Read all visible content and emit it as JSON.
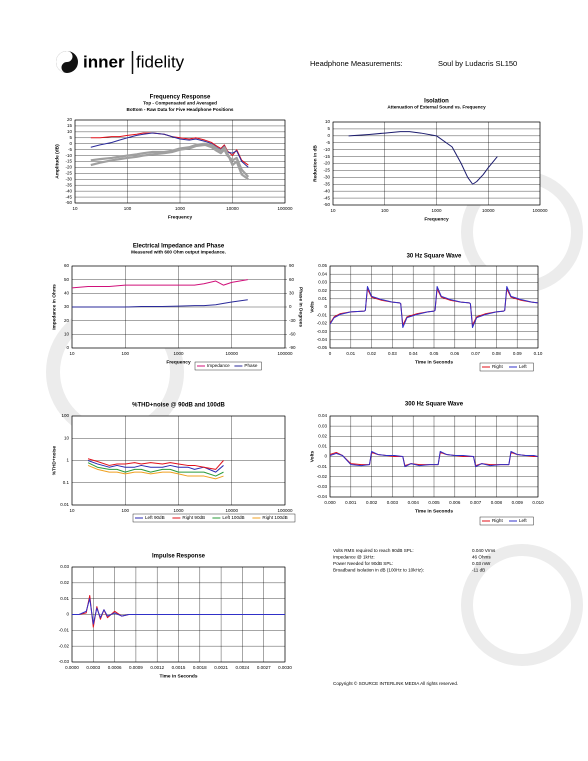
{
  "header": {
    "brand_left": "inner",
    "brand_right": "fidelity",
    "heading": "Headphone Measurements:",
    "product": "Soul by Ludacris SL150"
  },
  "chart_data": [
    {
      "type": "line",
      "title": "Frequency Response",
      "subtitles": [
        "Top - Compensated and Averaged",
        "Bottom - Raw Data for Five Headphone Positions"
      ],
      "x_label": "Frequency",
      "y_label": "Amplitude (dB)",
      "xscale": "log",
      "grid": true,
      "xlim": [
        10,
        100000
      ],
      "xticks": [
        10,
        100,
        1000,
        10000,
        100000
      ],
      "ylim": [
        -50,
        20
      ],
      "yticks": [
        20,
        15,
        10,
        5,
        0,
        -5,
        -10,
        -15,
        -20,
        -25,
        -30,
        -35,
        -40,
        -45,
        -50
      ],
      "x": [
        20,
        30,
        50,
        70,
        100,
        150,
        200,
        300,
        500,
        700,
        1000,
        1500,
        2000,
        3000,
        4000,
        5000,
        6000,
        7000,
        8000,
        10000,
        12000,
        15000,
        20000
      ],
      "series": [
        {
          "color": "#e0101a",
          "width": 1,
          "values": [
            5,
            5,
            6,
            6,
            7,
            8,
            9,
            9,
            8,
            6,
            5,
            4,
            5,
            3,
            1,
            -2,
            -4,
            -1,
            -6,
            -10,
            -5,
            -14,
            -18
          ]
        },
        {
          "color": "#2a2a9a",
          "width": 1,
          "values": [
            -3,
            -1,
            1,
            3,
            5,
            7,
            8,
            9,
            8,
            6,
            4,
            3,
            4,
            2,
            0,
            -3,
            -5,
            -2,
            -7,
            -8,
            -6,
            -15,
            -20
          ]
        },
        {
          "color": "#a0a0a0",
          "width": 2.2,
          "values": [
            -18,
            -16,
            -14,
            -13,
            -12,
            -11,
            -10,
            -9,
            -8,
            -7,
            -5,
            -4,
            -2,
            -1,
            -3,
            -6,
            -8,
            -5,
            -10,
            -14,
            -12,
            -22,
            -28
          ]
        },
        {
          "color": "#a0a0a0",
          "width": 2.2,
          "values": [
            -14,
            -13,
            -12,
            -11,
            -10,
            -9,
            -8,
            -7,
            -7,
            -6,
            -4,
            -3,
            -1,
            0,
            -1,
            -4,
            -6,
            -3,
            -8,
            -18,
            -15,
            -26,
            -30
          ]
        }
      ]
    },
    {
      "type": "line",
      "title": "Isolation",
      "subtitles": [
        "Attenuation of External Sound vs. Frequency"
      ],
      "x_label": "Frequency",
      "y_label": "Reduction in dB",
      "xscale": "log",
      "grid": true,
      "xlim": [
        10,
        100000
      ],
      "xticks": [
        10,
        100,
        1000,
        10000,
        100000
      ],
      "ylim": [
        -50,
        10
      ],
      "yticks": [
        10,
        5,
        0,
        -5,
        -10,
        -15,
        -20,
        -25,
        -30,
        -35,
        -40,
        -45,
        -50
      ],
      "x": [
        20,
        50,
        100,
        200,
        300,
        500,
        1000,
        2000,
        3000,
        4000,
        5000,
        6000,
        8000,
        10000,
        15000
      ],
      "series": [
        {
          "color": "#1c1c6e",
          "width": 1,
          "values": [
            0,
            1,
            2,
            3,
            3,
            2,
            0,
            -8,
            -20,
            -30,
            -35,
            -33,
            -28,
            -23,
            -15
          ]
        }
      ]
    },
    {
      "type": "line",
      "title": "Electrical Impedance and Phase",
      "subtitles": [
        "Measured with 600 Ohm output impedance."
      ],
      "x_label": "Frequency",
      "y_label": "Impedance in Ohms",
      "y2_label": "Phase in Degrees",
      "xscale": "log",
      "grid": true,
      "legend": "bottom",
      "xlim": [
        10,
        100000
      ],
      "xticks": [
        10,
        100,
        1000,
        10000,
        100000
      ],
      "ylim": [
        0,
        60
      ],
      "yticks": [
        60,
        50,
        40,
        30,
        20,
        10,
        0
      ],
      "y2lim": [
        -90,
        90
      ],
      "y2ticks": [
        90,
        60,
        30,
        0,
        -30,
        -60,
        -90
      ],
      "x": [
        10,
        20,
        50,
        100,
        200,
        500,
        1000,
        2000,
        3000,
        5000,
        7000,
        10000,
        20000
      ],
      "series": [
        {
          "name": "Impedance",
          "color": "#d0107a",
          "width": 1,
          "values": [
            44,
            45,
            45,
            46,
            46,
            46,
            46,
            46,
            47,
            49,
            46,
            48,
            50
          ]
        },
        {
          "name": "Phase",
          "color": "#2a2a9a",
          "width": 1,
          "axis": "y2",
          "values": [
            0,
            0,
            0,
            0,
            1,
            1,
            2,
            3,
            3,
            5,
            8,
            11,
            16
          ]
        }
      ]
    },
    {
      "type": "line",
      "title": "30 Hz Square Wave",
      "x_label": "Time in Seconds",
      "y_label": "Volts",
      "grid": true,
      "legend": "bottom-right",
      "xlim": [
        0,
        0.1
      ],
      "xticks": [
        0,
        0.01,
        0.02,
        0.03,
        0.04,
        0.05,
        0.06,
        0.07,
        0.08,
        0.09,
        {
          "value": 0.1,
          "label": "0.10"
        }
      ],
      "ylim": [
        -0.05,
        0.05
      ],
      "yticks": [
        0.05,
        0.04,
        0.03,
        0.02,
        0.01,
        0,
        -0.01,
        -0.02,
        -0.03,
        -0.04,
        -0.05
      ],
      "x": [
        0,
        0.002,
        0.005,
        0.01,
        0.0165,
        0.017,
        0.018,
        0.02,
        0.025,
        0.03,
        0.0335,
        0.034,
        0.035,
        0.037,
        0.042,
        0.047,
        0.05,
        0.0505,
        0.0515,
        0.0535,
        0.058,
        0.063,
        0.067,
        0.0675,
        0.0685,
        0.0705,
        0.075,
        0.08,
        0.0835,
        0.084,
        0.085,
        0.087,
        0.092,
        0.097,
        0.1
      ],
      "series": [
        {
          "name": "Right",
          "color": "#e0101a",
          "width": 1,
          "values": [
            -0.02,
            -0.012,
            -0.008,
            -0.006,
            -0.005,
            -0.004,
            0.022,
            0.012,
            0.008,
            0.006,
            0.005,
            0.004,
            -0.022,
            -0.012,
            -0.008,
            -0.006,
            -0.005,
            -0.004,
            0.022,
            0.012,
            0.008,
            0.006,
            0.005,
            0.004,
            -0.022,
            -0.012,
            -0.008,
            -0.006,
            -0.005,
            -0.004,
            0.022,
            0.012,
            0.008,
            0.006,
            0.005
          ]
        },
        {
          "name": "Left",
          "color": "#3030c8",
          "width": 1,
          "values": [
            -0.021,
            -0.013,
            -0.009,
            -0.006,
            -0.005,
            -0.004,
            0.025,
            0.013,
            0.009,
            0.006,
            0.005,
            0.004,
            -0.025,
            -0.013,
            -0.009,
            -0.006,
            -0.005,
            -0.004,
            0.025,
            0.013,
            0.009,
            0.006,
            0.005,
            0.004,
            -0.025,
            -0.013,
            -0.009,
            -0.006,
            -0.005,
            -0.004,
            0.025,
            0.013,
            0.009,
            0.006,
            0.005
          ]
        }
      ]
    },
    {
      "type": "line",
      "title": "%THD+noise @ 90dB and 100dB",
      "x_label": "Frequency",
      "y_label": "%THD+noise",
      "xscale": "log",
      "yscale": "log",
      "grid": true,
      "legend": "bottom",
      "xlim": [
        10,
        100000
      ],
      "xticks": [
        10,
        100,
        1000,
        10000,
        100000
      ],
      "ylim": [
        0.01,
        100
      ],
      "yticks": [
        100,
        10,
        1,
        0.1,
        0.01
      ],
      "x": [
        20,
        30,
        50,
        70,
        100,
        150,
        200,
        300,
        500,
        700,
        1000,
        1500,
        2000,
        3000,
        5000,
        7000
      ],
      "series": [
        {
          "name": "Left 90dB",
          "color": "#2a2ab0",
          "width": 1,
          "values": [
            1,
            0.7,
            0.5,
            0.6,
            0.5,
            0.5,
            0.6,
            0.5,
            0.5,
            0.6,
            0.5,
            0.5,
            0.4,
            0.5,
            0.3,
            0.6
          ]
        },
        {
          "name": "Right 90dB",
          "color": "#e0101a",
          "width": 1,
          "values": [
            1.2,
            0.9,
            0.6,
            0.7,
            0.7,
            0.8,
            0.7,
            0.8,
            0.7,
            0.8,
            0.7,
            0.6,
            0.6,
            0.5,
            0.4,
            1
          ]
        },
        {
          "name": "Left 100dB",
          "color": "#2a9a3a",
          "width": 1,
          "values": [
            0.8,
            0.5,
            0.4,
            0.4,
            0.3,
            0.4,
            0.4,
            0.3,
            0.4,
            0.4,
            0.3,
            0.3,
            0.3,
            0.3,
            0.2,
            0.3
          ]
        },
        {
          "name": "Right 100dB",
          "color": "#f0a020",
          "width": 1,
          "values": [
            0.6,
            0.4,
            0.3,
            0.3,
            0.25,
            0.3,
            0.3,
            0.25,
            0.3,
            0.3,
            0.25,
            0.2,
            0.2,
            0.2,
            0.15,
            0.2
          ]
        }
      ]
    },
    {
      "type": "line",
      "title": "300 Hz Square Wave",
      "x_label": "Time in Seconds",
      "y_label": "Volts",
      "grid": true,
      "legend": "bottom-right",
      "xlim": [
        0,
        0.01
      ],
      "xticks": [
        {
          "value": 0,
          "label": "0.000"
        },
        0.001,
        0.002,
        0.003,
        0.004,
        0.005,
        0.006,
        0.007,
        0.008,
        0.009,
        {
          "value": 0.01,
          "label": "0.010"
        }
      ],
      "ylim": [
        -0.04,
        0.04
      ],
      "yticks": [
        0.04,
        0.03,
        0.02,
        0.01,
        0,
        -0.01,
        -0.02,
        -0.03,
        -0.04
      ],
      "x": [
        0,
        0.0003,
        0.0006,
        0.001,
        0.0015,
        0.0019,
        0.002,
        0.0023,
        0.0027,
        0.0031,
        0.0035,
        0.0036,
        0.0039,
        0.0043,
        0.0048,
        0.0052,
        0.0053,
        0.0056,
        0.006,
        0.0064,
        0.0069,
        0.007,
        0.0073,
        0.0077,
        0.0082,
        0.0086,
        0.0087,
        0.009,
        0.0094,
        0.0098,
        0.01
      ],
      "series": [
        {
          "name": "Right",
          "color": "#e0101a",
          "width": 1,
          "values": [
            0.002,
            0.004,
            0.001,
            -0.007,
            -0.008,
            -0.008,
            0.004,
            0.002,
            0.001,
            0,
            0,
            -0.009,
            -0.007,
            -0.008,
            -0.008,
            -0.008,
            0.004,
            0.002,
            0.001,
            0,
            0,
            -0.009,
            -0.007,
            -0.008,
            -0.008,
            -0.008,
            0.004,
            0.002,
            0.001,
            0,
            0
          ]
        },
        {
          "name": "Left",
          "color": "#3030c8",
          "width": 1,
          "values": [
            0.001,
            0.003,
            0.001,
            -0.008,
            -0.009,
            -0.008,
            0.005,
            0.002,
            0.001,
            0.001,
            0,
            -0.01,
            -0.007,
            -0.009,
            -0.008,
            -0.008,
            0.005,
            0.002,
            0.001,
            0.001,
            0,
            -0.01,
            -0.007,
            -0.009,
            -0.008,
            -0.008,
            0.005,
            0.002,
            0.001,
            0.001,
            0
          ]
        }
      ]
    },
    {
      "type": "line",
      "title": "Impulse Response",
      "x_label": "Time in Seconds",
      "grid": true,
      "xlim": [
        0,
        0.003
      ],
      "xticks": [
        {
          "value": 0,
          "label": "0.0000"
        },
        0.0003,
        0.0006,
        0.0009,
        0.0012,
        0.0015,
        0.0018,
        0.0021,
        0.0024,
        0.0027,
        {
          "value": 0.003,
          "label": "0.0030"
        }
      ],
      "ylim": [
        -0.03,
        0.03
      ],
      "yticks": [
        0.03,
        0.02,
        0.01,
        0,
        -0.01,
        -0.02,
        -0.03
      ],
      "x": [
        0,
        0.0001,
        0.0002,
        0.00025,
        0.0003,
        0.00035,
        0.0004,
        0.00045,
        0.0005,
        0.0006,
        0.0007,
        0.0008,
        0.001,
        0.0015,
        0.002,
        0.0025,
        0.003
      ],
      "series": [
        {
          "color": "#e0101a",
          "width": 1,
          "values": [
            0,
            0,
            0.001,
            0.012,
            -0.008,
            0.005,
            -0.003,
            0.003,
            -0.002,
            0.002,
            -0.001,
            0,
            0,
            0,
            0,
            0,
            0
          ]
        },
        {
          "color": "#3030c8",
          "width": 1,
          "values": [
            0,
            0,
            0.002,
            0.01,
            -0.006,
            0.004,
            -0.002,
            0.003,
            -0.001,
            0.001,
            -0.001,
            0,
            0,
            0,
            0,
            0,
            0
          ]
        }
      ]
    }
  ],
  "specs": {
    "rows": [
      [
        "Volts RMS required to reach 90dB SPL:",
        "0.040 Vrms"
      ],
      [
        "Impedance @ 1kHz:",
        "46 Ohms"
      ],
      [
        "Power Needed for 90dB SPL:",
        "0.03 mW"
      ],
      [
        "Broadband Isolation in dB (100Hz to 10kHz):",
        "-11 dB"
      ]
    ]
  },
  "copyright": "Copyright © SOURCE INTERLINK MEDIA All rights reserved."
}
